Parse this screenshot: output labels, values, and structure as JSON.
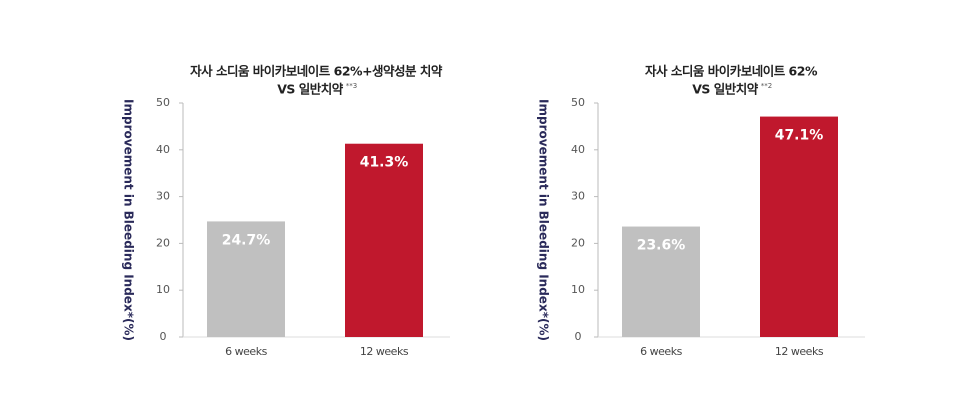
{
  "chart_data": [
    {
      "type": "bar",
      "title": "자사 소디움 바이카보네이트 62%+생약성분 치약",
      "subtitle": "VS 일반치약",
      "footnote_mark": "**3",
      "y_label": "Improvement in Bleeding Index*(%)",
      "categories": [
        "6 weeks",
        "12 weeks"
      ],
      "values": [
        24.7,
        41.3
      ],
      "value_labels": [
        "24.7%",
        "41.3%"
      ],
      "colors": [
        "#c0c0c0",
        "#c0182d"
      ],
      "ylim": [
        0,
        50
      ],
      "yticks": [
        0,
        10,
        20,
        30,
        40,
        50
      ]
    },
    {
      "type": "bar",
      "title": "자사 소디움 바이카보네이트 62%",
      "subtitle": "VS 일반치약",
      "footnote_mark": "**2",
      "y_label": "Improvement in Bleeding Index*(%)",
      "categories": [
        "6 weeks",
        "12 weeks"
      ],
      "values": [
        23.6,
        47.1
      ],
      "value_labels": [
        "23.6%",
        "47.1%"
      ],
      "colors": [
        "#c0c0c0",
        "#c0182d"
      ],
      "ylim": [
        0,
        50
      ],
      "yticks": [
        0,
        10,
        20,
        30,
        40,
        50
      ]
    }
  ]
}
